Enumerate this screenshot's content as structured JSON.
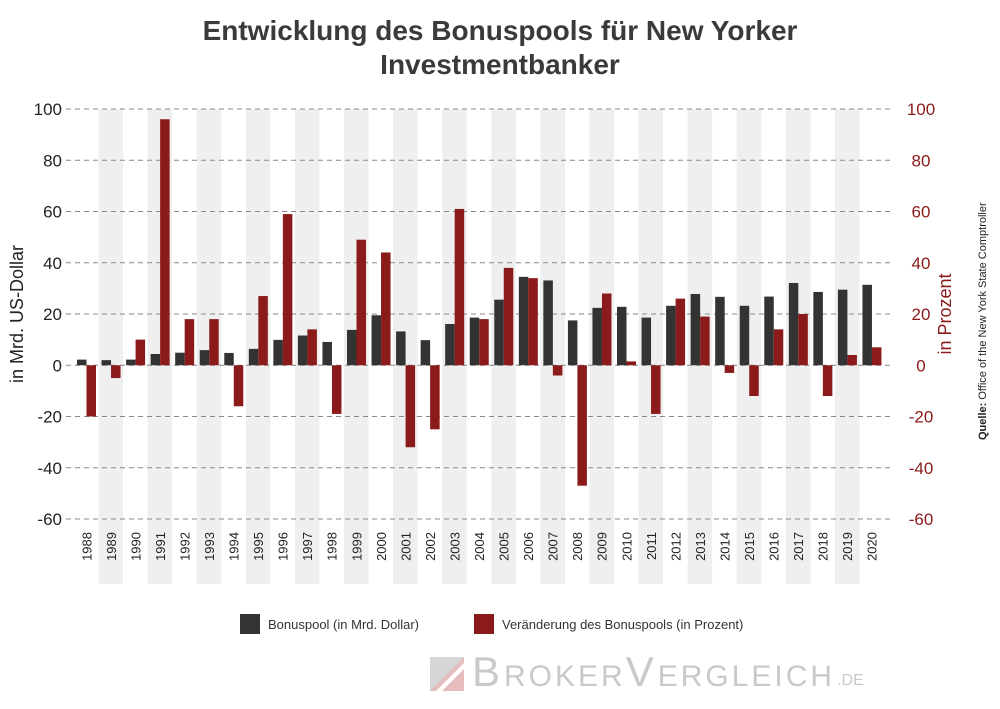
{
  "title_line1": "Entwicklung des Bonuspools für New Yorker",
  "title_line2": "Investmentbanker",
  "source_label": "Quelle:",
  "source_text": "Office of the New York State Comptroller",
  "logo_parts": {
    "b": "B",
    "roker": "ROKER",
    "v": "V",
    "ergleich": "ERGLEICH",
    "tld": ".DE"
  },
  "colors": {
    "bonuspool": "#333333",
    "change": "#8b1a1a",
    "band": "#efefef",
    "grid": "#888888"
  },
  "chart_data": {
    "type": "bar",
    "title": "Entwicklung des Bonuspools für New Yorker Investmentbanker",
    "ylabel_left": "in Mrd. US-Dollar",
    "ylabel_right": "in Prozent",
    "ylim": [
      -60,
      100
    ],
    "yticks": [
      100,
      80,
      60,
      40,
      20,
      0,
      -20,
      -40,
      -60
    ],
    "yticks_left_labels": [
      "100",
      "80",
      "60",
      "40",
      "20",
      "0",
      "-20",
      "-40",
      "-60"
    ],
    "yticks_right_labels": [
      "100",
      "80",
      "60",
      "40",
      "20",
      "0",
      "-20",
      "-40",
      "-60"
    ],
    "grid": true,
    "legend_placement": "bottom",
    "categories": [
      "1988",
      "1989",
      "1990",
      "1991",
      "1992",
      "1993",
      "1994",
      "1995",
      "1996",
      "1997",
      "1998",
      "1999",
      "2000",
      "2001",
      "2002",
      "2003",
      "2004",
      "2005",
      "2006",
      "2007",
      "2008",
      "2009",
      "2010",
      "2011",
      "2012",
      "2013",
      "2014",
      "2015",
      "2016",
      "2017",
      "2018",
      "2019",
      "2020"
    ],
    "series": [
      {
        "name": "Bonuspool (in Mrd. Dollar)",
        "values": [
          2.2,
          2.0,
          2.2,
          4.4,
          4.9,
          5.9,
          4.8,
          6.4,
          9.9,
          11.6,
          9.1,
          13.8,
          19.5,
          13.2,
          9.8,
          16.1,
          18.6,
          25.6,
          34.5,
          33.1,
          17.5,
          22.4,
          22.8,
          18.6,
          23.2,
          27.8,
          26.7,
          23.2,
          26.8,
          32.1,
          28.6,
          29.5,
          31.4
        ]
      },
      {
        "name": "Veränderung des Bonuspools (in Prozent)",
        "values": [
          -20,
          -5,
          10,
          96,
          18,
          18,
          -16,
          27,
          59,
          14,
          -19,
          49,
          44,
          -32,
          -25,
          61,
          18,
          38,
          34,
          -4,
          -47,
          28,
          1.5,
          -19,
          26,
          19,
          -3,
          -12,
          14,
          20,
          -12,
          4,
          7
        ]
      }
    ]
  }
}
